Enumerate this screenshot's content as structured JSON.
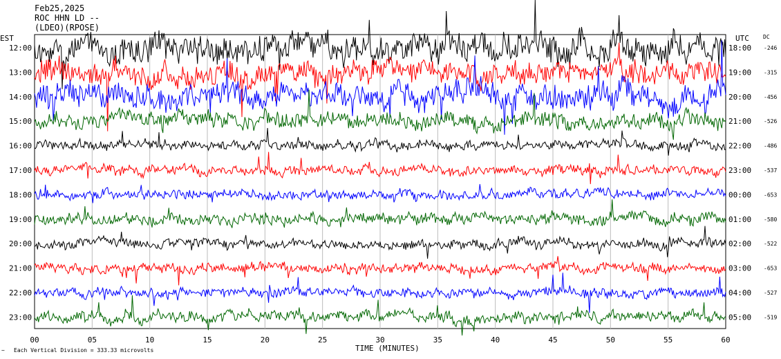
{
  "header": {
    "date": "Feb25,2025",
    "station": "ROC HHN LD --",
    "network": "(LDEO)(RPOSE)"
  },
  "left_axis_title": "EST",
  "right_axis_title": "UTC",
  "dc_title": "DC",
  "x_axis_label": "TIME (MINUTES)",
  "footer_note": "Each Vertical Division = 333.33 microvolts",
  "colors": {
    "black": "#000000",
    "red": "#ff0000",
    "blue": "#0000ff",
    "green": "#006600"
  },
  "chart_data": {
    "type": "line",
    "xlabel": "TIME (MINUTES)",
    "xlim": [
      0,
      60
    ],
    "x_ticks": [
      "00",
      "05",
      "10",
      "15",
      "20",
      "25",
      "30",
      "35",
      "40",
      "45",
      "50",
      "55",
      "60"
    ],
    "grid": "vertical",
    "series": [
      {
        "est": "12:00",
        "utc": "18:00",
        "dc": "-246",
        "color": "#000000",
        "amp": 1.8
      },
      {
        "est": "13:00",
        "utc": "19:00",
        "dc": "-315",
        "color": "#ff0000",
        "amp": 1.5
      },
      {
        "est": "14:00",
        "utc": "20:00",
        "dc": "-456",
        "color": "#0000ff",
        "amp": 1.6
      },
      {
        "est": "15:00",
        "utc": "21:00",
        "dc": "-526",
        "color": "#006600",
        "amp": 1.0
      },
      {
        "est": "16:00",
        "utc": "22:00",
        "dc": "-486",
        "color": "#000000",
        "amp": 0.6
      },
      {
        "est": "17:00",
        "utc": "23:00",
        "dc": "-537",
        "color": "#ff0000",
        "amp": 0.6
      },
      {
        "est": "18:00",
        "utc": "00:00",
        "dc": "-653",
        "color": "#0000ff",
        "amp": 0.6
      },
      {
        "est": "19:00",
        "utc": "01:00",
        "dc": "-580",
        "color": "#006600",
        "amp": 0.7
      },
      {
        "est": "20:00",
        "utc": "02:00",
        "dc": "-522",
        "color": "#000000",
        "amp": 0.6
      },
      {
        "est": "21:00",
        "utc": "03:00",
        "dc": "-653",
        "color": "#ff0000",
        "amp": 0.6
      },
      {
        "est": "22:00",
        "utc": "04:00",
        "dc": "-527",
        "color": "#0000ff",
        "amp": 0.6
      },
      {
        "est": "23:00",
        "utc": "05:00",
        "dc": "-519",
        "color": "#006600",
        "amp": 0.7
      }
    ]
  }
}
